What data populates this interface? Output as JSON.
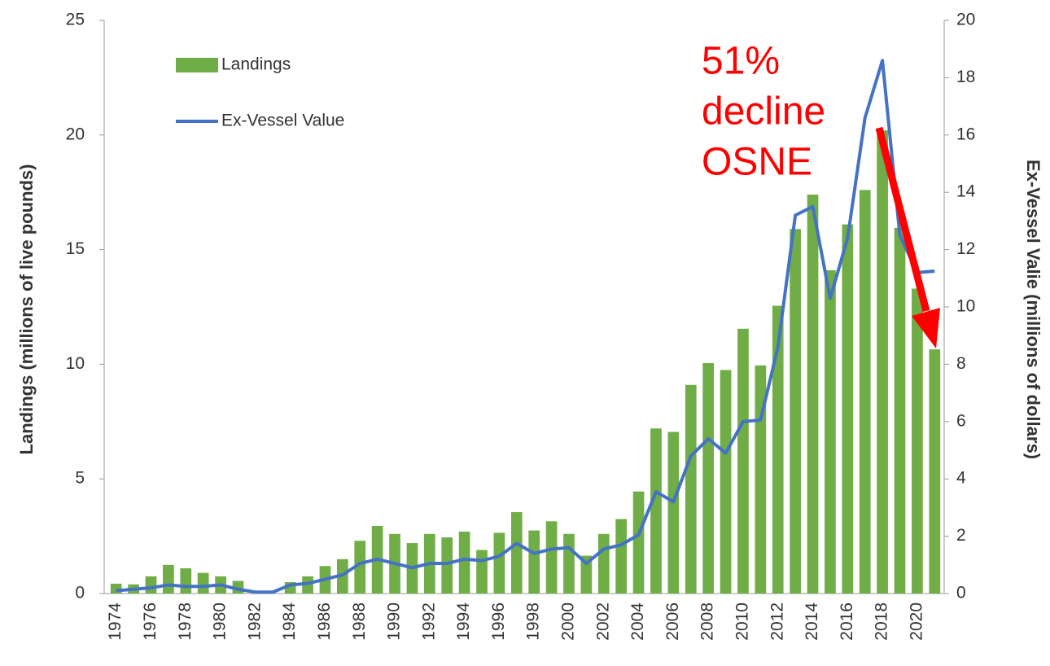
{
  "chart_data": {
    "type": "bar-line",
    "y_label": "Landings (millions of live pounds)",
    "y2_label": "Ex-Vessel Valie (millions of dollars)",
    "annotation": [
      "51%",
      "decline",
      "OSNE"
    ],
    "annotation_color": "#ff0000",
    "categories": [
      "1974",
      null,
      "1976",
      null,
      "1978",
      null,
      "1980",
      null,
      "1982",
      null,
      "1984",
      null,
      "1986",
      null,
      "1988",
      null,
      "1990",
      null,
      "1992",
      null,
      "1994",
      null,
      "1996",
      null,
      "1998",
      null,
      "2000",
      null,
      "2002",
      null,
      "2004",
      null,
      "2006",
      null,
      "2008",
      null,
      "2010",
      null,
      "2012",
      null,
      "2014",
      null,
      "2016",
      null,
      "2018",
      null,
      "2020",
      null
    ],
    "series": [
      {
        "name": "Landings",
        "type": "bar",
        "color": "#70ad47",
        "axis": "y",
        "values": [
          0.43,
          0.4,
          0.75,
          1.25,
          1.1,
          0.9,
          0.75,
          0.55,
          0,
          0,
          0.5,
          0.75,
          1.2,
          1.5,
          2.3,
          2.95,
          2.6,
          2.2,
          2.6,
          2.45,
          2.7,
          1.9,
          2.65,
          3.55,
          2.75,
          3.15,
          2.6,
          1.65,
          2.6,
          3.25,
          4.45,
          7.2,
          7.05,
          9.1,
          10.05,
          9.75,
          11.55,
          9.95,
          12.55,
          15.9,
          17.4,
          14.1,
          16.1,
          17.6,
          20.2,
          15.95,
          13.3,
          10.65
        ]
      },
      {
        "name": "Ex-Vessel Value",
        "type": "line",
        "color": "#4472c4",
        "axis": "y2",
        "values": [
          0.1,
          0.15,
          0.2,
          0.3,
          0.25,
          0.25,
          0.3,
          0.15,
          0.05,
          0.05,
          0.3,
          0.35,
          0.5,
          0.65,
          1.05,
          1.2,
          1.05,
          0.9,
          1.05,
          1.05,
          1.2,
          1.15,
          1.3,
          1.75,
          1.4,
          1.55,
          1.6,
          1.05,
          1.55,
          1.7,
          2.05,
          3.55,
          3.2,
          4.8,
          5.4,
          4.9,
          6.0,
          6.05,
          8.6,
          13.2,
          13.5,
          10.3,
          12.4,
          16.6,
          18.6,
          12.5,
          11.2,
          11.25
        ]
      }
    ],
    "ylim": [
      0,
      25
    ],
    "yticks": [
      0,
      5,
      10,
      15,
      20,
      25
    ],
    "y2lim": [
      0,
      20
    ],
    "y2ticks": [
      0,
      2,
      4,
      6,
      8,
      10,
      12,
      14,
      16,
      18,
      20
    ],
    "grid": false,
    "legend": "upper-left"
  }
}
